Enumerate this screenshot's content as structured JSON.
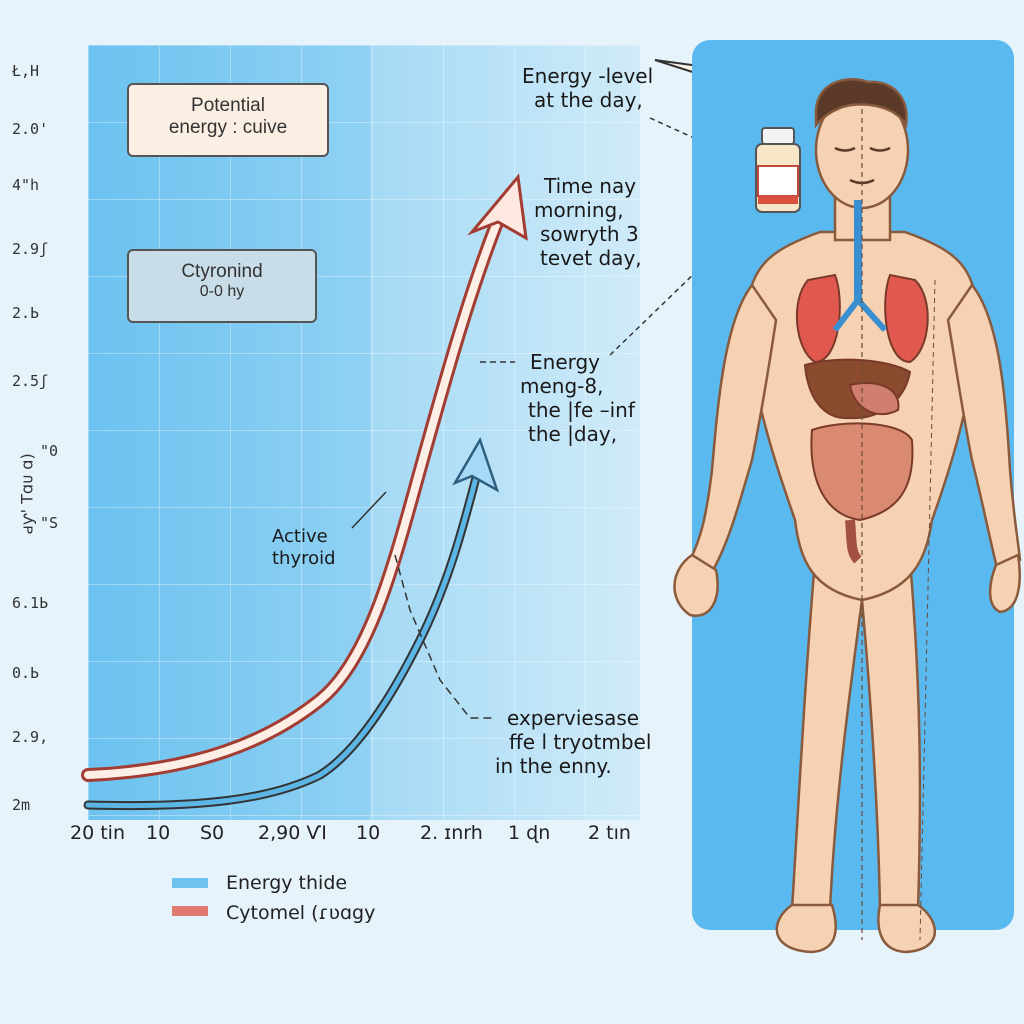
{
  "colors": {
    "background": "#e6f3fb",
    "plot_area": "#7fcbf2",
    "body_panel": "#5ab9ef",
    "red_curve": "#c8493d",
    "blue_curve": "#5bb6e6",
    "skin": "#f6d3b3"
  },
  "plot": {
    "y_ticks": [
      "Ł,Н",
      "2.0'",
      "4\"h",
      "2.9ʃ",
      "2.Ь",
      "2.5ʃ",
      "\"0",
      "\"S",
      "6.1Ь",
      "0.Ь",
      "2.9,",
      "2m"
    ],
    "y_axis_title": "ԁƴ' Tɑᴜ ɑ)",
    "x_ticks": [
      "20 tin",
      "10",
      "S0",
      "2,90  ѴΙ",
      "10",
      "2. ɪnrh",
      "1 ɖn",
      "2 tın"
    ]
  },
  "labels": {
    "potential_box": [
      "Potential",
      "energy : cuive"
    ],
    "cytonind_box": [
      "Ctyronind",
      "0-0 hy"
    ],
    "active_thyroid": [
      "Active",
      "thyroid"
    ],
    "energy_level": [
      "Energy -level",
      "at the day,"
    ],
    "time_morning": [
      "Time nay",
      "morning,",
      "sowryth 3",
      "tevet day,"
    ],
    "energy_meng": [
      "Energy",
      "meng-8,",
      "the |fe –inf",
      "the |day,"
    ],
    "experiese": [
      "experviesase",
      "ffe  l tryotmbel",
      "in the enny."
    ]
  },
  "legend": [
    {
      "label": "Energy thide",
      "color": "#6fc3ef"
    },
    {
      "label": "Cytomel (ɾʋɑgy",
      "color": "#e07a70"
    }
  ],
  "icons": [
    "pill-bottle-icon",
    "human-body-figure",
    "arrow-head-icon"
  ]
}
